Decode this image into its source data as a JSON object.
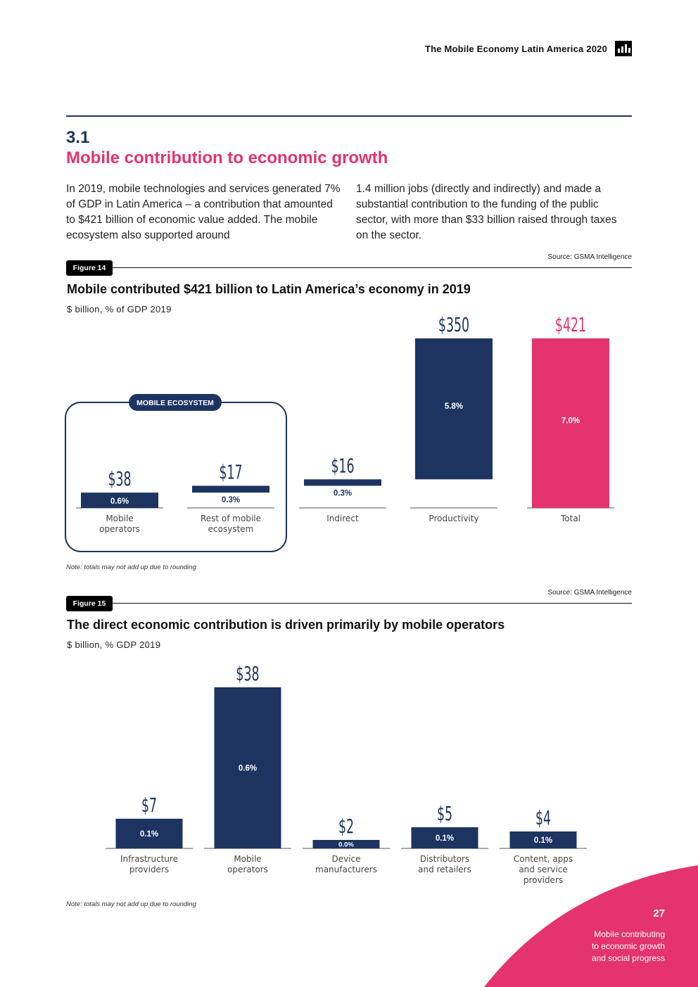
{
  "header": {
    "title": "The Mobile Economy Latin America 2020"
  },
  "section": {
    "number": "3.1",
    "title": "Mobile contribution to economic growth"
  },
  "body": {
    "col1": "In 2019, mobile technologies and services generated 7% of GDP in Latin America – a contribution that amounted to $421 billion of economic value added. The mobile ecosystem also supported around",
    "col2": "1.4 million jobs (directly and indirectly) and made a substantial contribution to the funding of the public sector, with more than $33 billion raised through taxes on the sector."
  },
  "figure14": {
    "source": "Source: GSMA Intelligence",
    "tag": "Figure 14",
    "title": "Mobile contributed $421 billion to Latin America’s economy in 2019",
    "subtitle": "$ billion, % of GDP 2019",
    "ecosystem_label": "MOBILE ECOSYSTEM",
    "note": "Note: totals may not add up due to rounding"
  },
  "figure15": {
    "source": "Source: GSMA Intelligence",
    "tag": "Figure 15",
    "title": "The direct economic contribution is driven primarily by mobile operators",
    "subtitle": "$ billion, % GDP 2019",
    "note": "Note: totals may not add up due to rounding"
  },
  "colors": {
    "navy": "#1d3461",
    "pink": "#e4336f"
  },
  "chart_data": [
    {
      "type": "bar",
      "subtype": "waterfall",
      "title": "Mobile contributed $421 billion to Latin America’s economy in 2019",
      "subtitle": "$ billion, % of GDP 2019",
      "categories": [
        "Mobile operators",
        "Rest of mobile ecosystem",
        "Indirect",
        "Productivity",
        "Total"
      ],
      "values": [
        38,
        17,
        16,
        350,
        421
      ],
      "value_labels": [
        "$38",
        "$17",
        "$16",
        "$350",
        "$421"
      ],
      "gdp_share_labels": [
        "0.6%",
        "0.3%",
        "0.3%",
        "5.8%",
        "7.0%"
      ],
      "bar_colors": [
        "#1d3461",
        "#1d3461",
        "#1d3461",
        "#1d3461",
        "#e4336f"
      ],
      "group": {
        "label": "MOBILE ECOSYSTEM",
        "categories": [
          "Mobile operators",
          "Rest of mobile ecosystem"
        ]
      }
    },
    {
      "type": "bar",
      "title": "The direct economic contribution is driven primarily by mobile operators",
      "subtitle": "$ billion, % GDP 2019",
      "categories": [
        "Infrastructure providers",
        "Mobile operators",
        "Device manufacturers",
        "Distributors and retailers",
        "Content, apps and service providers"
      ],
      "values": [
        7,
        38,
        2,
        5,
        4
      ],
      "value_labels": [
        "$7",
        "$38",
        "$2",
        "$5",
        "$4"
      ],
      "gdp_share_labels": [
        "0.1%",
        "0.6%",
        "0.0%",
        "0.1%",
        "0.1%"
      ]
    }
  ],
  "footer": {
    "page_number": "27",
    "section_line1": "Mobile contributing",
    "section_line2": "to economic growth",
    "section_line3": "and social progress"
  }
}
